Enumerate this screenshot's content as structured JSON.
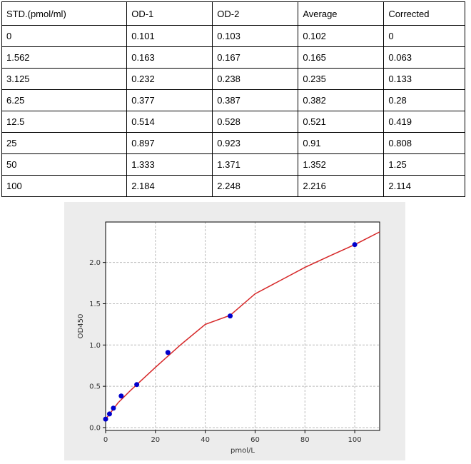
{
  "table": {
    "header": [
      "STD.(pmol/ml)",
      "OD-1",
      "OD-2",
      "Average",
      "Corrected"
    ],
    "rows": [
      [
        "0",
        "0.101",
        "0.103",
        "0.102",
        "0"
      ],
      [
        "1.562",
        "0.163",
        "0.167",
        "0.165",
        "0.063"
      ],
      [
        "3.125",
        "0.232",
        "0.238",
        "0.235",
        "0.133"
      ],
      [
        "6.25",
        "0.377",
        "0.387",
        "0.382",
        "0.28"
      ],
      [
        "12.5",
        "0.514",
        "0.528",
        "0.521",
        "0.419"
      ],
      [
        "25",
        "0.897",
        "0.923",
        "0.91",
        "0.808"
      ],
      [
        "50",
        "1.333",
        "1.371",
        "1.352",
        "1.25"
      ],
      [
        "100",
        "2.184",
        "2.248",
        "2.216",
        "2.114"
      ]
    ]
  },
  "chart_data": {
    "type": "scatter",
    "x_label": "pmol/L",
    "y_label": "OD450",
    "xlim": [
      0,
      110
    ],
    "ylim": [
      -0.035,
      2.49
    ],
    "xticks": [
      0,
      20,
      40,
      60,
      80,
      100
    ],
    "yticks": [
      {
        "value": 0,
        "label": "0.0"
      },
      {
        "value": 0.5,
        "label": "0.5"
      },
      {
        "value": 1,
        "label": "1.0"
      },
      {
        "value": 1.5,
        "label": "1.5"
      },
      {
        "value": 2,
        "label": "2.0"
      }
    ],
    "grid": true,
    "series": [
      {
        "type": "line",
        "color": "#d62728",
        "x": [
          0,
          5,
          10,
          20,
          30,
          40,
          50,
          60,
          70,
          80,
          90,
          100,
          110
        ],
        "values": [
          0.1,
          0.3,
          0.45,
          0.73,
          1.0,
          1.25,
          1.36,
          1.62,
          1.78,
          1.94,
          2.08,
          2.216,
          2.37
        ]
      },
      {
        "type": "scatter",
        "color": "#0000cc",
        "x": [
          0,
          1.562,
          3.125,
          6.25,
          12.5,
          25,
          50,
          100
        ],
        "values": [
          0.102,
          0.165,
          0.235,
          0.382,
          0.521,
          0.91,
          1.352,
          2.216
        ]
      }
    ]
  }
}
